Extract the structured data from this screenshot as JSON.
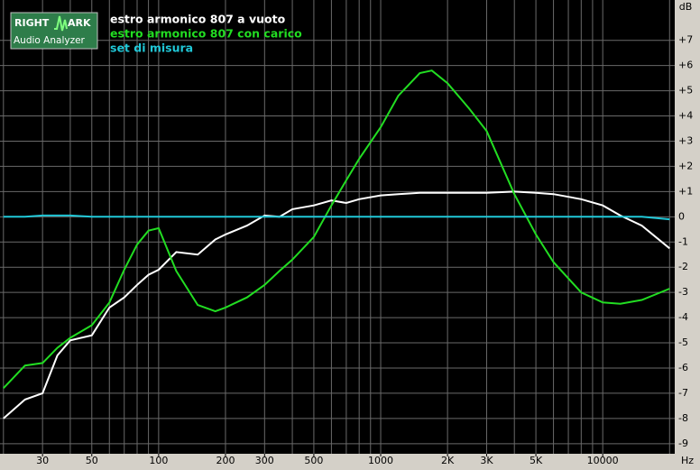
{
  "logo": {
    "left": "RIGHT",
    "right": "ARK",
    "bottom": "Audio Analyzer"
  },
  "chart_data": {
    "type": "line",
    "log_x": true,
    "grid": true,
    "x_label": "Hz",
    "y_label": "dB",
    "x": [
      20,
      25,
      30,
      35,
      40,
      50,
      60,
      70,
      80,
      90,
      100,
      120,
      150,
      180,
      200,
      250,
      300,
      350,
      400,
      500,
      600,
      700,
      800,
      1000,
      1200,
      1500,
      1700,
      2000,
      2500,
      3000,
      4000,
      5000,
      6000,
      8000,
      10000,
      12000,
      15000,
      20000
    ],
    "series": [
      {
        "name": "estro armonico 807 a vuoto",
        "color": "#ffffff",
        "values": [
          -8.0,
          -7.25,
          -7.0,
          -5.5,
          -4.9,
          -4.7,
          -3.6,
          -3.2,
          -2.7,
          -2.3,
          -2.1,
          -1.4,
          -1.5,
          -0.9,
          -0.7,
          -0.35,
          0.05,
          0.0,
          0.3,
          0.45,
          0.65,
          0.55,
          0.7,
          0.85,
          0.9,
          0.95,
          0.95,
          0.95,
          0.95,
          0.95,
          1.0,
          0.95,
          0.9,
          0.7,
          0.45,
          0.05,
          -0.35,
          -1.25
        ]
      },
      {
        "name": "estro armonico 807 con carico",
        "color": "#22dd22",
        "values": [
          -6.8,
          -5.9,
          -5.8,
          -5.2,
          -4.8,
          -4.3,
          -3.4,
          -2.1,
          -1.1,
          -0.55,
          -0.45,
          -2.15,
          -3.5,
          -3.75,
          -3.6,
          -3.2,
          -2.7,
          -2.15,
          -1.7,
          -0.8,
          0.45,
          1.45,
          2.3,
          3.55,
          4.8,
          5.7,
          5.8,
          5.3,
          4.3,
          3.4,
          0.9,
          -0.7,
          -1.8,
          -3.0,
          -3.4,
          -3.45,
          -3.3,
          -2.85
        ]
      },
      {
        "name": "set di misura",
        "color": "#20c8d8",
        "values": [
          0.0,
          0.0,
          0.05,
          0.05,
          0.05,
          0.0,
          0.0,
          0.0,
          0.0,
          0.0,
          0.0,
          0.0,
          0.0,
          0.0,
          0.0,
          0.0,
          0.0,
          0.0,
          0.0,
          0.0,
          0.0,
          0.0,
          0.0,
          0.0,
          0.0,
          0.0,
          0.0,
          0.0,
          0.0,
          0.0,
          0.0,
          0.0,
          0.0,
          0.0,
          0.0,
          0.0,
          0.0,
          -0.1
        ]
      }
    ],
    "xlim": [
      19.3,
      21100
    ],
    "xticks": [
      30,
      50,
      100,
      200,
      300,
      500,
      1000,
      {
        "value": 2000,
        "label": "2K"
      },
      {
        "value": 3000,
        "label": "3K"
      },
      {
        "value": 5000,
        "label": "5K"
      },
      10000
    ],
    "xgrid": [
      20,
      30,
      40,
      50,
      60,
      70,
      80,
      90,
      100,
      200,
      300,
      400,
      500,
      600,
      700,
      800,
      900,
      1000,
      2000,
      3000,
      4000,
      5000,
      6000,
      7000,
      8000,
      9000,
      10000,
      20000
    ],
    "ylim": [
      -9.4,
      8.6
    ],
    "yticks": [
      {
        "value": 7,
        "label": "+7"
      },
      {
        "value": 6,
        "label": "+6"
      },
      {
        "value": 5,
        "label": "+5"
      },
      {
        "value": 4,
        "label": "+4"
      },
      {
        "value": 3,
        "label": "+3"
      },
      {
        "value": 2,
        "label": "+2"
      },
      {
        "value": 1,
        "label": "+1"
      },
      0,
      -1,
      -2,
      -3,
      -4,
      -5,
      -6,
      -7,
      -8,
      -9
    ]
  }
}
